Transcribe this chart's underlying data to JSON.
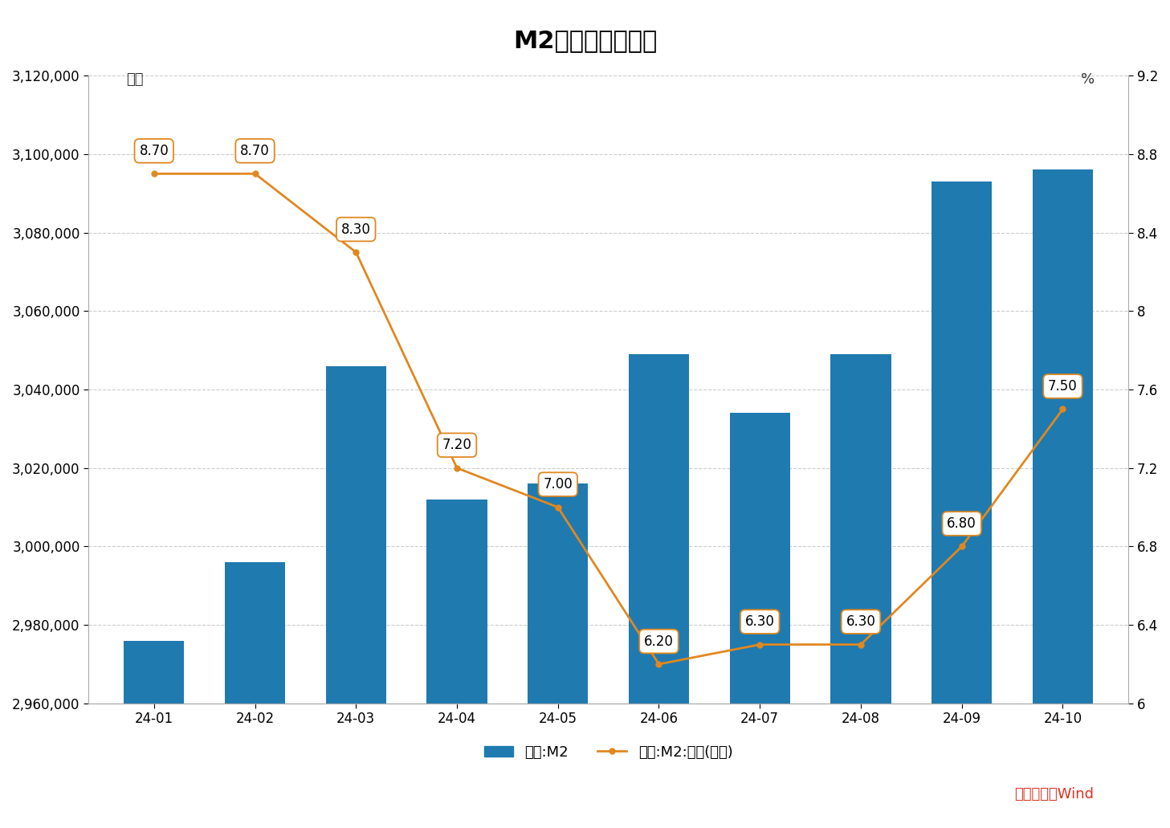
{
  "title": "M2数据及变化情况",
  "categories": [
    "24-01",
    "24-02",
    "24-03",
    "24-04",
    "24-05",
    "24-06",
    "24-07",
    "24-08",
    "24-09",
    "24-10"
  ],
  "m2_values": [
    2976000,
    2996000,
    3046000,
    3012000,
    3016000,
    3049000,
    3034000,
    3049000,
    3093000,
    3096000
  ],
  "yoy_values": [
    8.7,
    8.7,
    8.3,
    7.2,
    7.0,
    6.2,
    6.3,
    6.3,
    6.8,
    7.5
  ],
  "bar_color": "#1f7ab0",
  "line_color": "#e08820",
  "ylabel_left": "亿元",
  "ylabel_right": "%",
  "ylim_left": [
    2960000,
    3120000
  ],
  "ylim_right": [
    6.0,
    9.2
  ],
  "yticks_left": [
    2960000,
    2980000,
    3000000,
    3020000,
    3040000,
    3060000,
    3080000,
    3100000,
    3120000
  ],
  "yticks_right": [
    6.0,
    6.4,
    6.8,
    7.2,
    7.6,
    8.0,
    8.4,
    8.8,
    9.2
  ],
  "source_text": "数据来源：Wind",
  "source_color": "#e03020",
  "legend_bar_label": "中国:M2",
  "legend_line_label": "中国:M2:同比(右轴)",
  "background_color": "#ffffff",
  "grid_color": "#cccccc",
  "title_fontsize": 22,
  "label_fontsize": 13,
  "tick_fontsize": 12,
  "annotation_fontsize": 12
}
